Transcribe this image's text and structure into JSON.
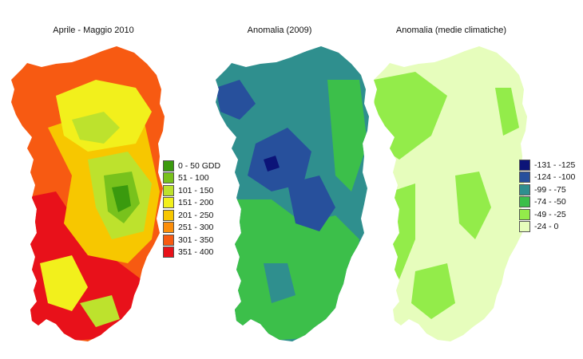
{
  "panels": [
    {
      "title": "Aprile - Maggio 2010",
      "legend": [
        {
          "label": "0 - 50 GDD",
          "color": "#3a9a0e"
        },
        {
          "label": "51 - 100",
          "color": "#78c21c"
        },
        {
          "label": "101 - 150",
          "color": "#bde22d"
        },
        {
          "label": "151 - 200",
          "color": "#f2f01c"
        },
        {
          "label": "201 - 250",
          "color": "#f7c700"
        },
        {
          "label": "251 - 300",
          "color": "#fb8e0a"
        },
        {
          "label": "301 - 350",
          "color": "#f75a12"
        },
        {
          "label": "351 - 400",
          "color": "#e8111a"
        }
      ]
    },
    {
      "title": "Anomalia (2009)",
      "legend": []
    },
    {
      "title": "Anomalia (medie climatiche)",
      "legend": [
        {
          "label": "-131 - -125",
          "color": "#0c1478"
        },
        {
          "label": "-124 - -100",
          "color": "#27509c"
        },
        {
          "label": "-99 - -75",
          "color": "#2f8f8e"
        },
        {
          "label": "-74 - -50",
          "color": "#3cbf4a"
        },
        {
          "label": "-49 - -25",
          "color": "#93ec4a"
        },
        {
          "label": "-24 - 0",
          "color": "#e6fdbc"
        }
      ]
    }
  ]
}
